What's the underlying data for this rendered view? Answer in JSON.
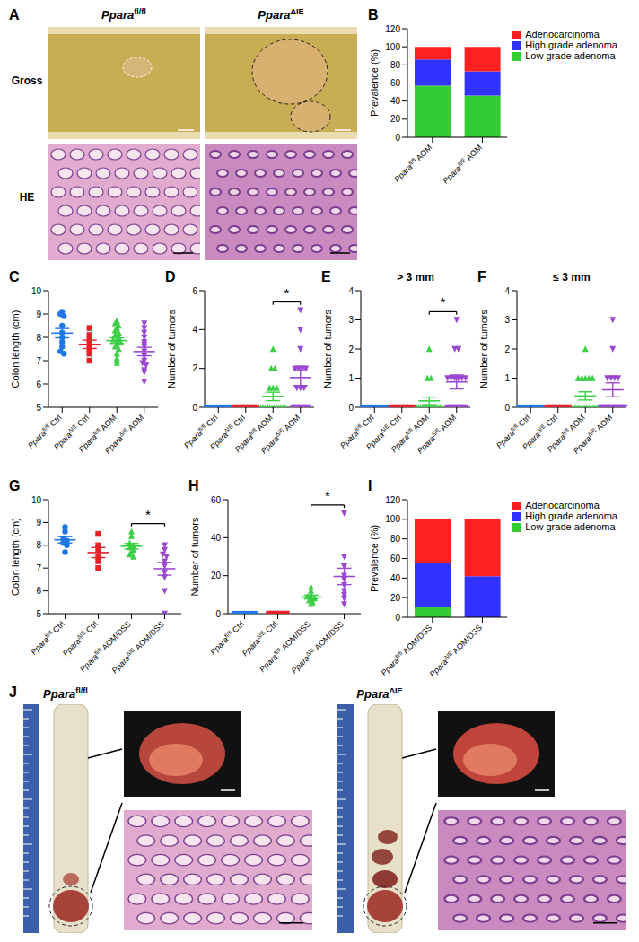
{
  "chart_data": [
    {
      "panel": "B",
      "type": "bar",
      "stacked": true,
      "ylabel": "Prevalence (%)",
      "categories": [
        "Pparafl/fl AOM",
        "PparaΔIE AOM"
      ],
      "series": [
        {
          "name": "Low grade adenoma",
          "color": "#33cc33",
          "values": [
            57,
            46
          ]
        },
        {
          "name": "High grade adenoma",
          "color": "#3333ff",
          "values": [
            29,
            27
          ]
        },
        {
          "name": "Adenocarcinoma",
          "color": "#ff2020",
          "values": [
            14,
            27
          ]
        }
      ],
      "ylim": [
        0,
        120
      ],
      "yticks": [
        0,
        20,
        40,
        60,
        80,
        100,
        120
      ],
      "legend": "right"
    },
    {
      "panel": "C",
      "type": "scatter",
      "ylabel": "Colon length (cm)",
      "categories": [
        "Pparafl/fl Ctrl",
        "PparaΔIE Ctrl",
        "Pparafl/fl AOM",
        "PparaΔIE AOM"
      ],
      "groups": [
        {
          "color": "#1f77e6",
          "marker": "circle",
          "values": [
            9.1,
            9.0,
            8.9,
            8.5,
            8.2,
            8.0,
            7.8,
            7.6,
            7.4,
            7.3
          ],
          "mean": 8.18,
          "sem": 0.2
        },
        {
          "color": "#e8202a",
          "marker": "square",
          "values": [
            8.4,
            8.1,
            7.9,
            7.7,
            7.5,
            7.3,
            7.0
          ],
          "mean": 7.7,
          "sem": 0.18
        },
        {
          "color": "#3ccf45",
          "marker": "triangle",
          "values": [
            8.7,
            8.6,
            8.5,
            8.4,
            8.3,
            8.2,
            8.1,
            8.0,
            7.9,
            7.9,
            7.8,
            7.7,
            7.6,
            7.5,
            7.3,
            7.1,
            7.0,
            6.9
          ],
          "mean": 7.86,
          "sem": 0.12
        },
        {
          "color": "#9a48d0",
          "marker": "triangle-down",
          "values": [
            8.6,
            8.4,
            8.2,
            8.0,
            7.8,
            7.7,
            7.6,
            7.4,
            7.2,
            7.0,
            6.9,
            6.8,
            6.6,
            6.5,
            6.1
          ],
          "mean": 7.39,
          "sem": 0.18
        }
      ],
      "ylim": [
        5,
        10
      ],
      "yticks": [
        5,
        6,
        7,
        8,
        9,
        10
      ]
    },
    {
      "panel": "D",
      "type": "scatter",
      "ylabel": "Number of tumors",
      "categories": [
        "Pparafl/fl Ctrl",
        "PparaΔIE Ctrl",
        "Pparafl/fl AOM",
        "PparaΔIE AOM"
      ],
      "groups": [
        {
          "color": "#1f77e6",
          "marker": "circle",
          "values": [
            0,
            0,
            0,
            0,
            0,
            0,
            0,
            0,
            0,
            0
          ],
          "mean": 0,
          "sem": 0
        },
        {
          "color": "#e8202a",
          "marker": "square",
          "values": [
            0,
            0,
            0,
            0,
            0,
            0,
            0
          ],
          "mean": 0,
          "sem": 0
        },
        {
          "color": "#3ccf45",
          "marker": "triangle",
          "values": [
            3,
            2,
            2,
            1,
            1,
            1,
            0,
            0,
            0,
            0,
            0,
            0,
            0,
            0,
            0,
            0,
            0,
            0
          ],
          "mean": 0.56,
          "sem": 0.22
        },
        {
          "color": "#9a48d0",
          "marker": "triangle-down",
          "values": [
            5,
            4,
            3,
            2,
            2,
            2,
            2,
            1,
            1,
            1,
            0,
            0,
            0,
            0,
            0
          ],
          "mean": 1.53,
          "sem": 0.41
        }
      ],
      "ylim": [
        0,
        6
      ],
      "yticks": [
        0,
        2,
        4,
        6
      ],
      "significance": [
        {
          "between": [
            2,
            3
          ],
          "label": "*"
        }
      ]
    },
    {
      "panel": "E",
      "type": "scatter",
      "title": "> 3 mm",
      "ylabel": "Number of tumors",
      "categories": [
        "Pparafl/fl Ctrl",
        "PparaΔIE Ctrl",
        "Pparafl/fl AOM",
        "PparaΔIE AOM"
      ],
      "groups": [
        {
          "color": "#1f77e6",
          "marker": "circle",
          "values": [
            0,
            0,
            0,
            0,
            0,
            0,
            0,
            0,
            0,
            0
          ],
          "mean": 0,
          "sem": 0
        },
        {
          "color": "#e8202a",
          "marker": "square",
          "values": [
            0,
            0,
            0,
            0,
            0,
            0,
            0
          ],
          "mean": 0,
          "sem": 0
        },
        {
          "color": "#3ccf45",
          "marker": "triangle",
          "values": [
            2,
            1,
            1,
            0,
            0,
            0,
            0,
            0,
            0,
            0,
            0,
            0,
            0,
            0,
            0,
            0,
            0,
            0
          ],
          "mean": 0.22,
          "sem": 0.13
        },
        {
          "color": "#9a48d0",
          "marker": "triangle-down",
          "values": [
            3,
            2,
            2,
            1,
            1,
            1,
            1,
            1,
            1,
            0,
            0,
            0,
            0,
            0,
            0
          ],
          "mean": 0.87,
          "sem": 0.24
        }
      ],
      "ylim": [
        0,
        4
      ],
      "yticks": [
        0,
        1,
        2,
        3,
        4
      ],
      "significance": [
        {
          "between": [
            2,
            3
          ],
          "label": "*"
        }
      ]
    },
    {
      "panel": "F",
      "type": "scatter",
      "title": "≤ 3 mm",
      "ylabel": "Number of tumors",
      "categories": [
        "Pparafl/fl Ctrl",
        "PparaΔIE Ctrl",
        "Pparafl/fl AOM",
        "PparaΔIE AOM"
      ],
      "groups": [
        {
          "color": "#1f77e6",
          "marker": "circle",
          "values": [
            0,
            0,
            0,
            0,
            0,
            0,
            0,
            0,
            0,
            0
          ],
          "mean": 0,
          "sem": 0
        },
        {
          "color": "#e8202a",
          "marker": "square",
          "values": [
            0,
            0,
            0,
            0,
            0,
            0,
            0
          ],
          "mean": 0,
          "sem": 0
        },
        {
          "color": "#3ccf45",
          "marker": "triangle",
          "values": [
            2,
            1,
            1,
            1,
            1,
            1,
            0,
            0,
            0,
            0,
            0,
            0,
            0,
            0,
            0,
            0,
            0,
            0
          ],
          "mean": 0.39,
          "sem": 0.14
        },
        {
          "color": "#9a48d0",
          "marker": "triangle-down",
          "values": [
            3,
            2,
            1,
            1,
            1,
            1,
            0,
            0,
            0,
            0,
            0,
            0,
            0,
            0,
            0
          ],
          "mean": 0.6,
          "sem": 0.24
        }
      ],
      "ylim": [
        0,
        4
      ],
      "yticks": [
        0,
        1,
        2,
        3,
        4
      ]
    },
    {
      "panel": "G",
      "type": "scatter",
      "ylabel": "Colon length (cm)",
      "categories": [
        "Pparafl/fl Ctrl",
        "PparaΔIE Ctrl",
        "Pparafl/fl AOM/DSS",
        "PparaΔIE AOM/DSS"
      ],
      "groups": [
        {
          "color": "#1f77e6",
          "marker": "circle",
          "values": [
            8.8,
            8.6,
            8.3,
            8.2,
            8.1,
            8.0,
            7.7
          ],
          "mean": 8.24,
          "sem": 0.14
        },
        {
          "color": "#e8202a",
          "marker": "square",
          "values": [
            8.5,
            8.0,
            7.8,
            7.5,
            7.3,
            7.0
          ],
          "mean": 7.68,
          "sem": 0.22
        },
        {
          "color": "#3ccf45",
          "marker": "triangle",
          "values": [
            8.6,
            8.4,
            8.1,
            8.0,
            7.9,
            7.8,
            7.7,
            7.6,
            7.5
          ],
          "mean": 7.96,
          "sem": 0.12
        },
        {
          "color": "#9a48d0",
          "marker": "triangle-down",
          "values": [
            8.0,
            7.8,
            7.6,
            7.5,
            7.3,
            7.1,
            6.8,
            6.6,
            6.0,
            5.0
          ],
          "mean": 6.97,
          "sem": 0.28
        }
      ],
      "ylim": [
        5,
        10
      ],
      "yticks": [
        5,
        6,
        7,
        8,
        9,
        10
      ],
      "significance": [
        {
          "between": [
            2,
            3
          ],
          "label": "*"
        }
      ]
    },
    {
      "panel": "H",
      "type": "scatter",
      "ylabel": "Number of tumors",
      "categories": [
        "Pparafl/fl Ctrl",
        "PparaΔIE Ctrl",
        "Pparafl/fl AOM/DSS",
        "PparaΔIE AOM/DSS"
      ],
      "groups": [
        {
          "color": "#1f77e6",
          "marker": "circle",
          "values": [
            0,
            0,
            0,
            0,
            0,
            0,
            0
          ],
          "mean": 0,
          "sem": 0
        },
        {
          "color": "#e8202a",
          "marker": "square",
          "values": [
            0,
            0,
            0,
            0,
            0,
            0
          ],
          "mean": 0,
          "sem": 0
        },
        {
          "color": "#3ccf45",
          "marker": "triangle",
          "values": [
            14,
            12,
            10,
            9,
            8,
            8,
            7,
            6,
            5
          ],
          "mean": 8.78,
          "sem": 0.98
        },
        {
          "color": "#9a48d0",
          "marker": "triangle-down",
          "values": [
            53,
            30,
            25,
            20,
            18,
            15,
            12,
            10,
            8,
            5
          ],
          "mean": 19.6,
          "sem": 4.3
        }
      ],
      "ylim": [
        0,
        60
      ],
      "yticks": [
        0,
        20,
        40,
        60
      ],
      "significance": [
        {
          "between": [
            2,
            3
          ],
          "label": "*"
        }
      ]
    },
    {
      "panel": "I",
      "type": "bar",
      "stacked": true,
      "ylabel": "Prevalence (%)",
      "categories": [
        "Pparafl/fl AOM/DSS",
        "PparaΔIE AOM/DSS"
      ],
      "series": [
        {
          "name": "Low grade adenoma",
          "color": "#33cc33",
          "values": [
            10,
            0
          ]
        },
        {
          "name": "High grade adenoma",
          "color": "#3333ff",
          "values": [
            45,
            42
          ]
        },
        {
          "name": "Adenocarcinoma",
          "color": "#ff2020",
          "values": [
            45,
            58
          ]
        }
      ],
      "ylim": [
        0,
        120
      ],
      "yticks": [
        0,
        20,
        40,
        60,
        80,
        100,
        120
      ],
      "legend": "right"
    }
  ],
  "images": [
    {
      "panel": "A",
      "columns": [
        "Pparafl/fl",
        "PparaΔIE"
      ],
      "rows": [
        "Gross",
        "HE"
      ]
    },
    {
      "panel": "J",
      "columns": [
        "Pparafl/fl",
        "PparaΔIE"
      ]
    }
  ]
}
